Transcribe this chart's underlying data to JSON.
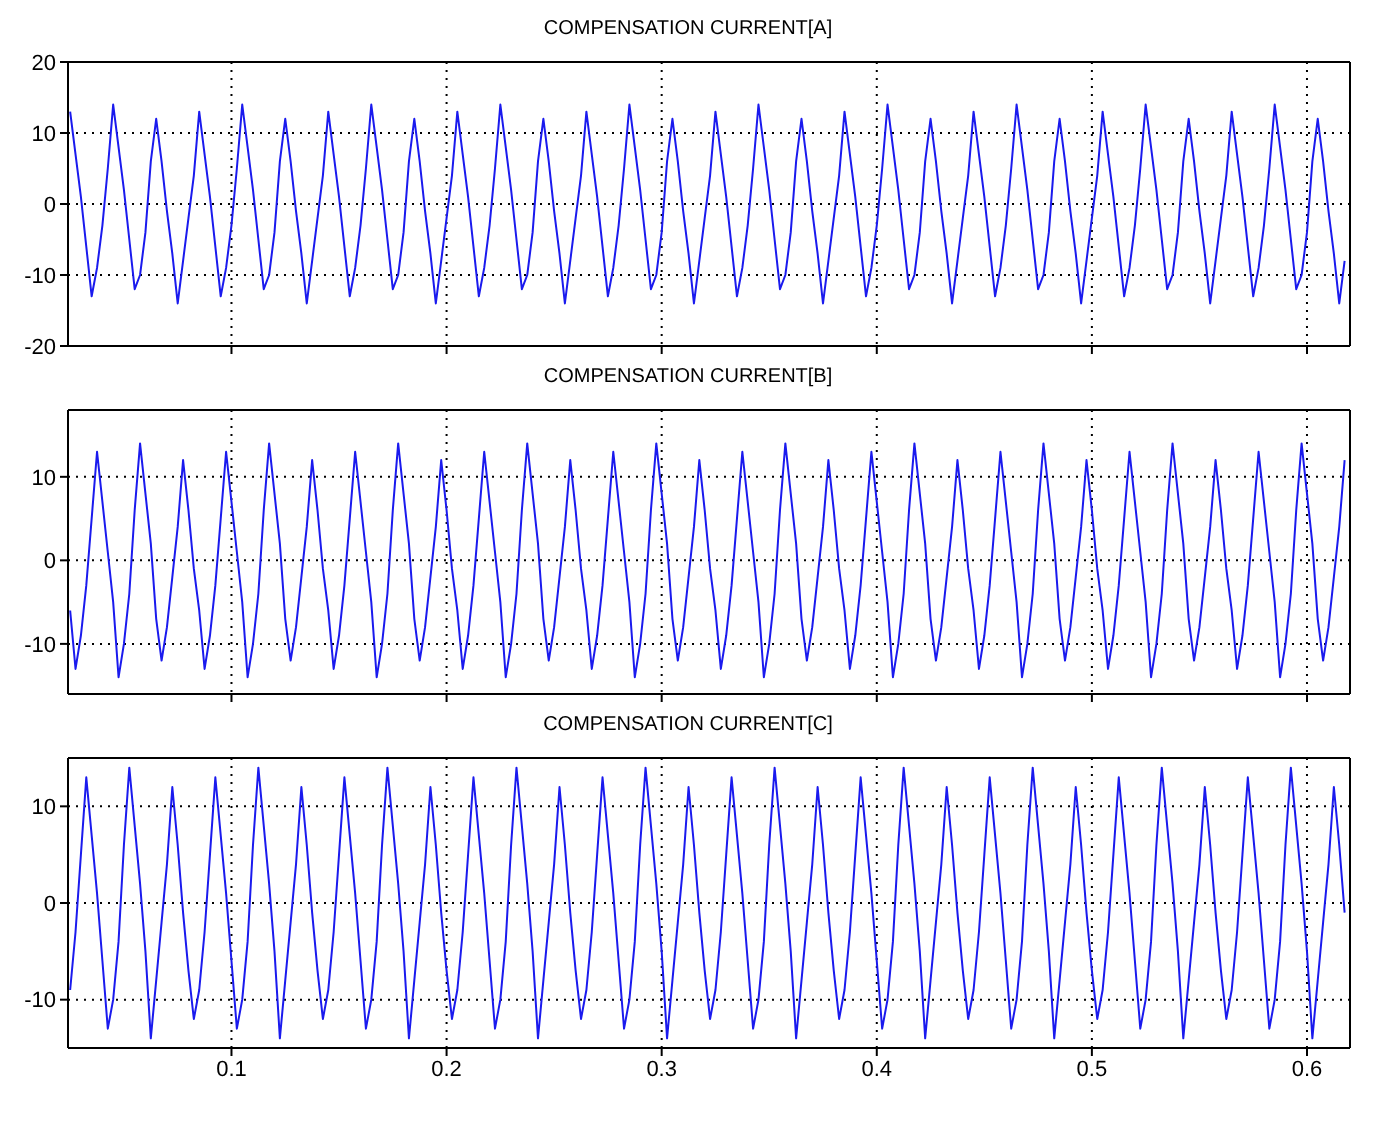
{
  "chart_data": [
    {
      "type": "line",
      "title": "COMPENSATION CURRENT[A]",
      "color": "#1a1aee",
      "xlim": [
        0.024,
        0.62
      ],
      "xticks": [
        0.1,
        0.2,
        0.3,
        0.4,
        0.5,
        0.6
      ],
      "ylim": [
        -20,
        20
      ],
      "yticks": [
        -20,
        -10,
        0,
        10,
        20
      ],
      "grid": true,
      "tick_labels": "y",
      "x": [
        0.025,
        0.0275,
        0.03,
        0.0325,
        0.035,
        0.0375,
        0.04,
        0.0425,
        0.045,
        0.0475,
        0.05,
        0.0525,
        0.055,
        0.0575,
        0.06,
        0.0625,
        0.065,
        0.0675,
        0.07,
        0.0725,
        0.075,
        0.0775,
        0.08,
        0.0825,
        0.085,
        0.0875,
        0.09,
        0.0925,
        0.095,
        0.0975,
        0.1,
        0.1025,
        0.105,
        0.1075,
        0.11,
        0.1125,
        0.115,
        0.1175,
        0.12,
        0.1225,
        0.125,
        0.1275,
        0.13,
        0.1325,
        0.135,
        0.1375,
        0.14,
        0.1425,
        0.145,
        0.1475,
        0.15,
        0.1525,
        0.155,
        0.1575,
        0.16,
        0.1625,
        0.165,
        0.1675,
        0.17,
        0.1725,
        0.175,
        0.1775,
        0.18,
        0.1825,
        0.185,
        0.1875,
        0.19,
        0.1925,
        0.195,
        0.1975,
        0.2,
        0.2025,
        0.205,
        0.2075,
        0.21,
        0.2125,
        0.215,
        0.2175,
        0.22,
        0.2225,
        0.225,
        0.2275,
        0.23,
        0.2325,
        0.235,
        0.2375,
        0.24,
        0.2425,
        0.245,
        0.2475,
        0.25,
        0.2525,
        0.255,
        0.2575,
        0.26,
        0.2625,
        0.265,
        0.2675,
        0.27,
        0.2725,
        0.275,
        0.2775,
        0.28,
        0.2825,
        0.285,
        0.2875,
        0.29,
        0.2925,
        0.295,
        0.2975,
        0.3,
        0.3025,
        0.305,
        0.3075,
        0.31,
        0.3125,
        0.315,
        0.3175,
        0.32,
        0.3225,
        0.325,
        0.3275,
        0.33,
        0.3325,
        0.335,
        0.3375,
        0.34,
        0.3425,
        0.345,
        0.3475,
        0.35,
        0.3525,
        0.355,
        0.3575,
        0.36,
        0.3625,
        0.365,
        0.3675,
        0.37,
        0.3725,
        0.375,
        0.3775,
        0.38,
        0.3825,
        0.385,
        0.3875,
        0.39,
        0.3925,
        0.395,
        0.3975,
        0.4,
        0.4025,
        0.405,
        0.4075,
        0.41,
        0.4125,
        0.415,
        0.4175,
        0.42,
        0.4225,
        0.425,
        0.4275,
        0.43,
        0.4325,
        0.435,
        0.4375,
        0.44,
        0.4425,
        0.445,
        0.4475,
        0.45,
        0.4525,
        0.455,
        0.4575,
        0.46,
        0.4625,
        0.465,
        0.4675,
        0.47,
        0.4725,
        0.475,
        0.4775,
        0.48,
        0.4825,
        0.485,
        0.4875,
        0.49,
        0.4925,
        0.495,
        0.4975,
        0.5,
        0.5025,
        0.505,
        0.5075,
        0.51,
        0.5125,
        0.515,
        0.5175,
        0.52,
        0.5225,
        0.525,
        0.5275,
        0.53,
        0.5325,
        0.535,
        0.5375,
        0.54,
        0.5425,
        0.545,
        0.5475,
        0.55,
        0.5525,
        0.555,
        0.5575,
        0.56,
        0.5625,
        0.565,
        0.5675,
        0.57,
        0.5725,
        0.575,
        0.5775,
        0.58,
        0.5825,
        0.585,
        0.5875,
        0.59,
        0.5925,
        0.595,
        0.5975,
        0.6,
        0.6025,
        0.605,
        0.6075,
        0.61,
        0.6125,
        0.615,
        0.6175
      ],
      "values": [
        13,
        7,
        1,
        -6,
        -13,
        -9,
        -3,
        5,
        14,
        8,
        2,
        -5,
        -12,
        -10,
        -4,
        6,
        12,
        6,
        -1,
        -7,
        -14,
        -8,
        -2,
        4,
        13,
        7,
        1,
        -6,
        -13,
        -9,
        -3,
        5,
        14,
        8,
        2,
        -5,
        -12,
        -10,
        -4,
        6,
        12,
        6,
        -1,
        -7,
        -14,
        -8,
        -2,
        4,
        13,
        7,
        1,
        -6,
        -13,
        -9,
        -3,
        5,
        14,
        8,
        2,
        -5,
        -12,
        -10,
        -4,
        6,
        12,
        6,
        -1,
        -7,
        -14,
        -8,
        -2,
        4,
        13,
        7,
        1,
        -6,
        -13,
        -9,
        -3,
        5,
        14,
        8,
        2,
        -5,
        -12,
        -10,
        -4,
        6,
        12,
        6,
        -1,
        -7,
        -14,
        -8,
        -2,
        4,
        13,
        7,
        1,
        -6,
        -13,
        -9,
        -3,
        5,
        14,
        8,
        2,
        -5,
        -12,
        -10,
        -4,
        6,
        12,
        6,
        -1,
        -7,
        -14,
        -8,
        -2,
        4,
        13,
        7,
        1,
        -6,
        -13,
        -9,
        -3,
        5,
        14,
        8,
        2,
        -5,
        -12,
        -10,
        -4,
        6,
        12,
        6,
        -1,
        -7,
        -14,
        -8,
        -2,
        4,
        13,
        7,
        1,
        -6,
        -13,
        -9,
        -3,
        5,
        14,
        8,
        2,
        -5,
        -12,
        -10,
        -4,
        6,
        12,
        6,
        -1,
        -7,
        -14,
        -8,
        -2,
        4,
        13,
        7,
        1,
        -6,
        -13,
        -9,
        -3,
        5,
        14,
        8,
        2,
        -5,
        -12,
        -10,
        -4,
        6,
        12,
        6,
        -1,
        -7,
        -14,
        -8,
        -2,
        4,
        13,
        7,
        1,
        -6,
        -13,
        -9,
        -3,
        5,
        14,
        8,
        2,
        -5,
        -12,
        -10,
        -4,
        6,
        12,
        6,
        -1,
        -7,
        -14,
        -8,
        -2,
        4,
        13,
        7,
        1,
        -6,
        -13,
        -9,
        -3,
        5,
        14,
        8,
        2,
        -5,
        -12,
        -10,
        -4,
        6,
        12,
        6,
        -1,
        -7,
        -14,
        -8
      ]
    },
    {
      "type": "line",
      "title": "COMPENSATION CURRENT[B]",
      "color": "#1a1aee",
      "xlim": [
        0.024,
        0.62
      ],
      "xticks": [
        0.1,
        0.2,
        0.3,
        0.4,
        0.5,
        0.6
      ],
      "ylim": [
        -16,
        18
      ],
      "yticks": [
        -10,
        0,
        10
      ],
      "grid": true,
      "tick_labels": "y",
      "x": [
        0.025,
        0.0275,
        0.03,
        0.0325,
        0.035,
        0.0375,
        0.04,
        0.0425,
        0.045,
        0.0475,
        0.05,
        0.0525,
        0.055,
        0.0575,
        0.06,
        0.0625,
        0.065,
        0.0675,
        0.07,
        0.0725,
        0.075,
        0.0775,
        0.08,
        0.0825,
        0.085,
        0.0875,
        0.09,
        0.0925,
        0.095,
        0.0975,
        0.1,
        0.1025,
        0.105,
        0.1075,
        0.11,
        0.1125,
        0.115,
        0.1175,
        0.12,
        0.1225,
        0.125,
        0.1275,
        0.13,
        0.1325,
        0.135,
        0.1375,
        0.14,
        0.1425,
        0.145,
        0.1475,
        0.15,
        0.1525,
        0.155,
        0.1575,
        0.16,
        0.1625,
        0.165,
        0.1675,
        0.17,
        0.1725,
        0.175,
        0.1775,
        0.18,
        0.1825,
        0.185,
        0.1875,
        0.19,
        0.1925,
        0.195,
        0.1975,
        0.2,
        0.2025,
        0.205,
        0.2075,
        0.21,
        0.2125,
        0.215,
        0.2175,
        0.22,
        0.2225,
        0.225,
        0.2275,
        0.23,
        0.2325,
        0.235,
        0.2375,
        0.24,
        0.2425,
        0.245,
        0.2475,
        0.25,
        0.2525,
        0.255,
        0.2575,
        0.26,
        0.2625,
        0.265,
        0.2675,
        0.27,
        0.2725,
        0.275,
        0.2775,
        0.28,
        0.2825,
        0.285,
        0.2875,
        0.29,
        0.2925,
        0.295,
        0.2975,
        0.3,
        0.3025,
        0.305,
        0.3075,
        0.31,
        0.3125,
        0.315,
        0.3175,
        0.32,
        0.3225,
        0.325,
        0.3275,
        0.33,
        0.3325,
        0.335,
        0.3375,
        0.34,
        0.3425,
        0.345,
        0.3475,
        0.35,
        0.3525,
        0.355,
        0.3575,
        0.36,
        0.3625,
        0.365,
        0.3675,
        0.37,
        0.3725,
        0.375,
        0.3775,
        0.38,
        0.3825,
        0.385,
        0.3875,
        0.39,
        0.3925,
        0.395,
        0.3975,
        0.4,
        0.4025,
        0.405,
        0.4075,
        0.41,
        0.4125,
        0.415,
        0.4175,
        0.42,
        0.4225,
        0.425,
        0.4275,
        0.43,
        0.4325,
        0.435,
        0.4375,
        0.44,
        0.4425,
        0.445,
        0.4475,
        0.45,
        0.4525,
        0.455,
        0.4575,
        0.46,
        0.4625,
        0.465,
        0.4675,
        0.47,
        0.4725,
        0.475,
        0.4775,
        0.48,
        0.4825,
        0.485,
        0.4875,
        0.49,
        0.4925,
        0.495,
        0.4975,
        0.5,
        0.5025,
        0.505,
        0.5075,
        0.51,
        0.5125,
        0.515,
        0.5175,
        0.52,
        0.5225,
        0.525,
        0.5275,
        0.53,
        0.5325,
        0.535,
        0.5375,
        0.54,
        0.5425,
        0.545,
        0.5475,
        0.55,
        0.5525,
        0.555,
        0.5575,
        0.56,
        0.5625,
        0.565,
        0.5675,
        0.57,
        0.5725,
        0.575,
        0.5775,
        0.58,
        0.5825,
        0.585,
        0.5875,
        0.59,
        0.5925,
        0.595,
        0.5975,
        0.6,
        0.6025,
        0.605,
        0.6075,
        0.61,
        0.6125,
        0.615,
        0.6175
      ],
      "values": [
        -6,
        -13,
        -9,
        -3,
        5,
        13,
        7,
        1,
        -5,
        -14,
        -10,
        -4,
        6,
        14,
        8,
        2,
        -7,
        -12,
        -8,
        -2,
        4,
        12,
        6,
        -1,
        -6,
        -13,
        -9,
        -3,
        5,
        13,
        7,
        1,
        -5,
        -14,
        -10,
        -4,
        6,
        14,
        8,
        2,
        -7,
        -12,
        -8,
        -2,
        4,
        12,
        6,
        -1,
        -6,
        -13,
        -9,
        -3,
        5,
        13,
        7,
        1,
        -5,
        -14,
        -10,
        -4,
        6,
        14,
        8,
        2,
        -7,
        -12,
        -8,
        -2,
        4,
        12,
        6,
        -1,
        -6,
        -13,
        -9,
        -3,
        5,
        13,
        7,
        1,
        -5,
        -14,
        -10,
        -4,
        6,
        14,
        8,
        2,
        -7,
        -12,
        -8,
        -2,
        4,
        12,
        6,
        -1,
        -6,
        -13,
        -9,
        -3,
        5,
        13,
        7,
        1,
        -5,
        -14,
        -10,
        -4,
        6,
        14,
        8,
        2,
        -7,
        -12,
        -8,
        -2,
        4,
        12,
        6,
        -1,
        -6,
        -13,
        -9,
        -3,
        5,
        13,
        7,
        1,
        -5,
        -14,
        -10,
        -4,
        6,
        14,
        8,
        2,
        -7,
        -12,
        -8,
        -2,
        4,
        12,
        6,
        -1,
        -6,
        -13,
        -9,
        -3,
        5,
        13,
        7,
        1,
        -5,
        -14,
        -10,
        -4,
        6,
        14,
        8,
        2,
        -7,
        -12,
        -8,
        -2,
        4,
        12,
        6,
        -1,
        -6,
        -13,
        -9,
        -3,
        5,
        13,
        7,
        1,
        -5,
        -14,
        -10,
        -4,
        6,
        14,
        8,
        2,
        -7,
        -12,
        -8,
        -2,
        4,
        12,
        6,
        -1,
        -6,
        -13,
        -9,
        -3,
        5,
        13,
        7,
        1,
        -5,
        -14,
        -10,
        -4,
        6,
        14,
        8,
        2,
        -7,
        -12,
        -8,
        -2,
        4,
        12,
        6,
        -1,
        -6,
        -13,
        -9,
        -3,
        5,
        13,
        7,
        1,
        -5,
        -14,
        -10,
        -4,
        6,
        14,
        8,
        2,
        -7,
        -12,
        -8,
        -2,
        4,
        12
      ]
    },
    {
      "type": "line",
      "title": "COMPENSATION CURRENT[C]",
      "color": "#1a1aee",
      "xlim": [
        0.024,
        0.62
      ],
      "xticks": [
        0.1,
        0.2,
        0.3,
        0.4,
        0.5,
        0.6
      ],
      "ylim": [
        -15,
        15
      ],
      "yticks": [
        -10,
        0,
        10
      ],
      "grid": true,
      "x": [
        0.025,
        0.0275,
        0.03,
        0.0325,
        0.035,
        0.0375,
        0.04,
        0.0425,
        0.045,
        0.0475,
        0.05,
        0.0525,
        0.055,
        0.0575,
        0.06,
        0.0625,
        0.065,
        0.0675,
        0.07,
        0.0725,
        0.075,
        0.0775,
        0.08,
        0.0825,
        0.085,
        0.0875,
        0.09,
        0.0925,
        0.095,
        0.0975,
        0.1,
        0.1025,
        0.105,
        0.1075,
        0.11,
        0.1125,
        0.115,
        0.1175,
        0.12,
        0.1225,
        0.125,
        0.1275,
        0.13,
        0.1325,
        0.135,
        0.1375,
        0.14,
        0.1425,
        0.145,
        0.1475,
        0.15,
        0.1525,
        0.155,
        0.1575,
        0.16,
        0.1625,
        0.165,
        0.1675,
        0.17,
        0.1725,
        0.175,
        0.1775,
        0.18,
        0.1825,
        0.185,
        0.1875,
        0.19,
        0.1925,
        0.195,
        0.1975,
        0.2,
        0.2025,
        0.205,
        0.2075,
        0.21,
        0.2125,
        0.215,
        0.2175,
        0.22,
        0.2225,
        0.225,
        0.2275,
        0.23,
        0.2325,
        0.235,
        0.2375,
        0.24,
        0.2425,
        0.245,
        0.2475,
        0.25,
        0.2525,
        0.255,
        0.2575,
        0.26,
        0.2625,
        0.265,
        0.2675,
        0.27,
        0.2725,
        0.275,
        0.2775,
        0.28,
        0.2825,
        0.285,
        0.2875,
        0.29,
        0.2925,
        0.295,
        0.2975,
        0.3,
        0.3025,
        0.305,
        0.3075,
        0.31,
        0.3125,
        0.315,
        0.3175,
        0.32,
        0.3225,
        0.325,
        0.3275,
        0.33,
        0.3325,
        0.335,
        0.3375,
        0.34,
        0.3425,
        0.345,
        0.3475,
        0.35,
        0.3525,
        0.355,
        0.3575,
        0.36,
        0.3625,
        0.365,
        0.3675,
        0.37,
        0.3725,
        0.375,
        0.3775,
        0.38,
        0.3825,
        0.385,
        0.3875,
        0.39,
        0.3925,
        0.395,
        0.3975,
        0.4,
        0.4025,
        0.405,
        0.4075,
        0.41,
        0.4125,
        0.415,
        0.4175,
        0.42,
        0.4225,
        0.425,
        0.4275,
        0.43,
        0.4325,
        0.435,
        0.4375,
        0.44,
        0.4425,
        0.445,
        0.4475,
        0.45,
        0.4525,
        0.455,
        0.4575,
        0.46,
        0.4625,
        0.465,
        0.4675,
        0.47,
        0.4725,
        0.475,
        0.4775,
        0.48,
        0.4825,
        0.485,
        0.4875,
        0.49,
        0.4925,
        0.495,
        0.4975,
        0.5,
        0.5025,
        0.505,
        0.5075,
        0.51,
        0.5125,
        0.515,
        0.5175,
        0.52,
        0.5225,
        0.525,
        0.5275,
        0.53,
        0.5325,
        0.535,
        0.5375,
        0.54,
        0.5425,
        0.545,
        0.5475,
        0.55,
        0.5525,
        0.555,
        0.5575,
        0.56,
        0.5625,
        0.565,
        0.5675,
        0.57,
        0.5725,
        0.575,
        0.5775,
        0.58,
        0.5825,
        0.585,
        0.5875,
        0.59,
        0.5925,
        0.595,
        0.5975,
        0.6,
        0.6025,
        0.605,
        0.6075,
        0.61,
        0.6125,
        0.615,
        0.6175
      ],
      "values": [
        -9,
        -3,
        5,
        13,
        7,
        1,
        -6,
        -13,
        -10,
        -4,
        6,
        14,
        8,
        2,
        -5,
        -14,
        -8,
        -2,
        4,
        12,
        6,
        -1,
        -7,
        -12,
        -9,
        -3,
        5,
        13,
        7,
        1,
        -6,
        -13,
        -10,
        -4,
        6,
        14,
        8,
        2,
        -5,
        -14,
        -8,
        -2,
        4,
        12,
        6,
        -1,
        -7,
        -12,
        -9,
        -3,
        5,
        13,
        7,
        1,
        -6,
        -13,
        -10,
        -4,
        6,
        14,
        8,
        2,
        -5,
        -14,
        -8,
        -2,
        4,
        12,
        6,
        -1,
        -7,
        -12,
        -9,
        -3,
        5,
        13,
        7,
        1,
        -6,
        -13,
        -10,
        -4,
        6,
        14,
        8,
        2,
        -5,
        -14,
        -8,
        -2,
        4,
        12,
        6,
        -1,
        -7,
        -12,
        -9,
        -3,
        5,
        13,
        7,
        1,
        -6,
        -13,
        -10,
        -4,
        6,
        14,
        8,
        2,
        -5,
        -14,
        -8,
        -2,
        4,
        12,
        6,
        -1,
        -7,
        -12,
        -9,
        -3,
        5,
        13,
        7,
        1,
        -6,
        -13,
        -10,
        -4,
        6,
        14,
        8,
        2,
        -5,
        -14,
        -8,
        -2,
        4,
        12,
        6,
        -1,
        -7,
        -12,
        -9,
        -3,
        5,
        13,
        7,
        1,
        -6,
        -13,
        -10,
        -4,
        6,
        14,
        8,
        2,
        -5,
        -14,
        -8,
        -2,
        4,
        12,
        6,
        -1,
        -7,
        -12,
        -9,
        -3,
        5,
        13,
        7,
        1,
        -6,
        -13,
        -10,
        -4,
        6,
        14,
        8,
        2,
        -5,
        -14,
        -8,
        -2,
        4,
        12,
        6,
        -1,
        -7,
        -12,
        -9,
        -3,
        5,
        13,
        7,
        1,
        -6,
        -13,
        -10,
        -4,
        6,
        14,
        8,
        2,
        -5,
        -14,
        -8,
        -2,
        4,
        12,
        6,
        -1,
        -7,
        -12,
        -9,
        -3,
        5,
        13,
        7,
        1,
        -6,
        -13,
        -10,
        -4,
        6,
        14,
        8,
        2,
        -5,
        -14,
        -8,
        -2,
        4,
        12,
        6,
        -1
      ]
    }
  ]
}
